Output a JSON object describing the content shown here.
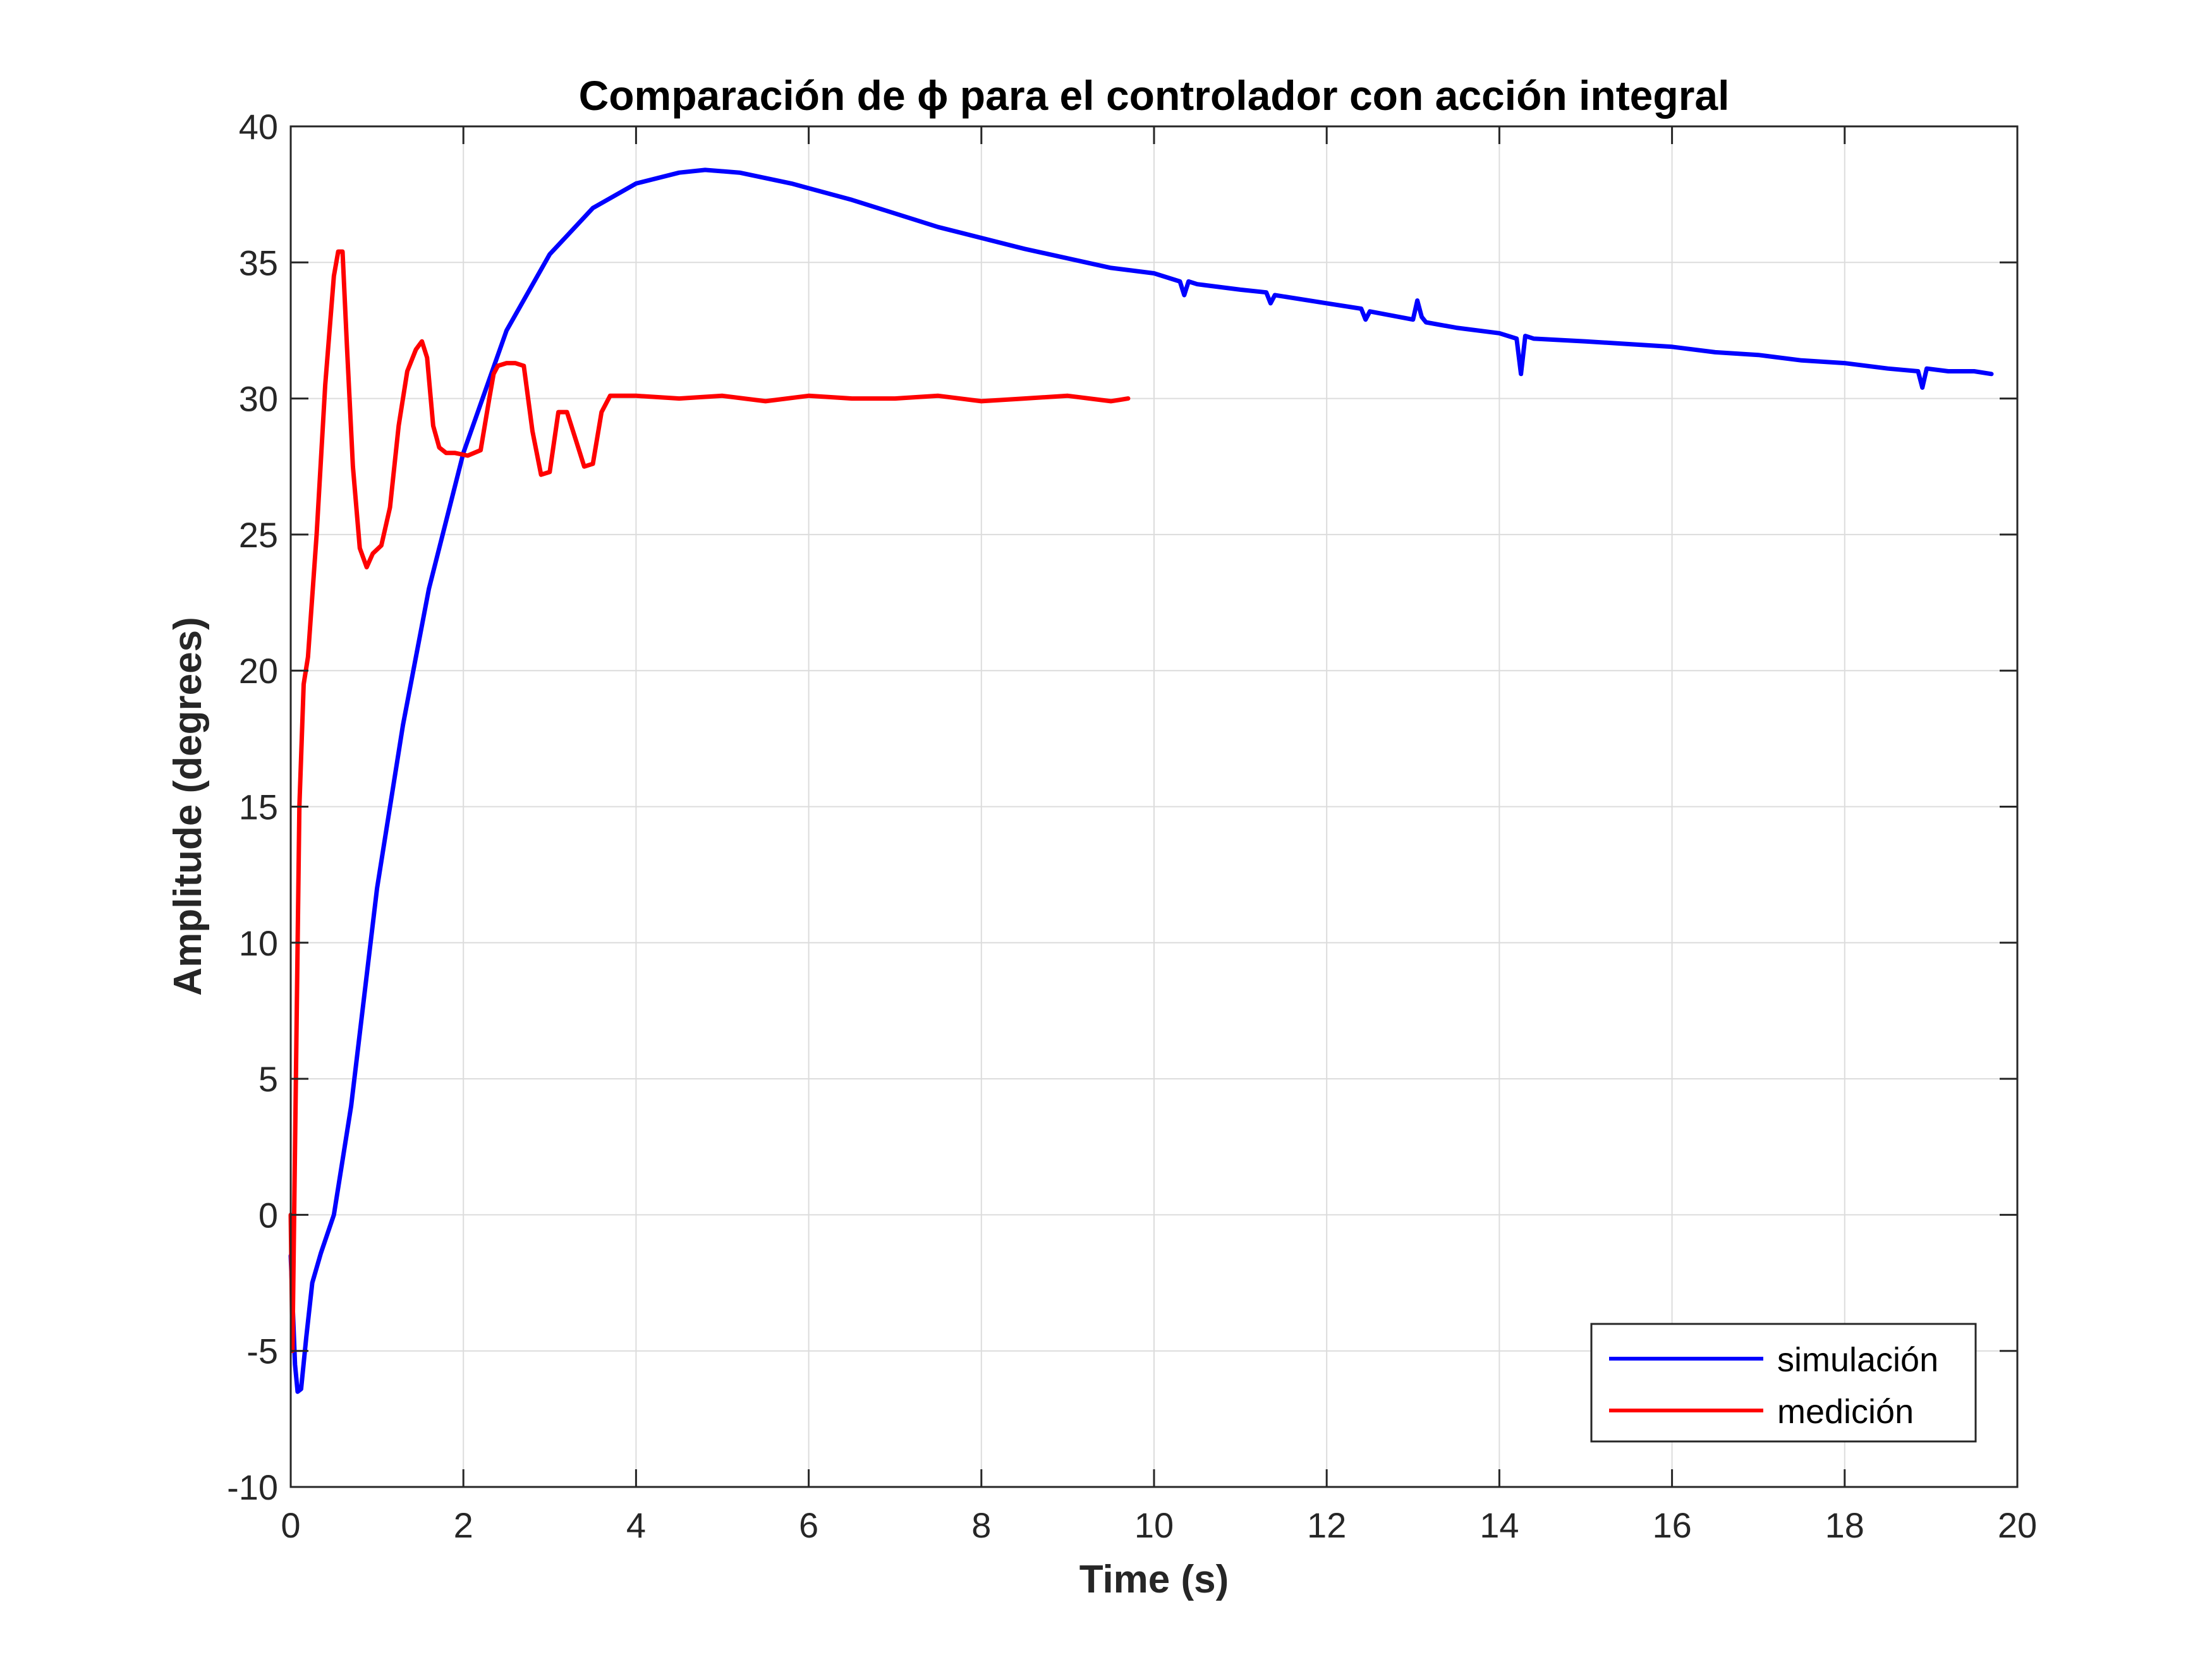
{
  "chart_data": {
    "type": "line",
    "title": "Comparación de ϕ para el controlador con acción integral",
    "xlabel": "Time (s)",
    "ylabel": "Amplitude (degrees)",
    "xlim": [
      0,
      20
    ],
    "ylim": [
      -10,
      40
    ],
    "xticks": [
      "0",
      "2",
      "4",
      "6",
      "8",
      "10",
      "12",
      "14",
      "16",
      "18",
      "20"
    ],
    "yticks": [
      "40",
      "35",
      "30",
      "25",
      "20",
      "15",
      "10",
      "5",
      "0",
      "-5",
      "-10"
    ],
    "grid": true,
    "legend_position": "bottom-right",
    "series": [
      {
        "name": "simulación",
        "color": "#0000ff",
        "x": [
          0,
          0.05,
          0.08,
          0.12,
          0.18,
          0.25,
          0.35,
          0.5,
          0.7,
          1.0,
          1.3,
          1.6,
          2.0,
          2.5,
          3.0,
          3.5,
          4.0,
          4.5,
          4.8,
          5.2,
          5.8,
          6.5,
          7.5,
          8.5,
          9.5,
          10.0,
          10.3,
          10.35,
          10.4,
          10.5,
          11.0,
          11.3,
          11.35,
          11.4,
          12.0,
          12.4,
          12.45,
          12.5,
          13.0,
          13.05,
          13.1,
          13.15,
          13.5,
          14.0,
          14.2,
          14.25,
          14.3,
          14.4,
          15.0,
          15.5,
          16.0,
          16.5,
          17.0,
          17.5,
          18.0,
          18.5,
          18.85,
          18.9,
          18.95,
          19.2,
          19.5,
          19.7
        ],
        "values": [
          -1.5,
          -5.5,
          -6.5,
          -6.4,
          -4.5,
          -2.5,
          -1.4,
          0,
          4,
          12,
          18,
          23,
          28,
          32.5,
          35.3,
          37,
          37.9,
          38.3,
          38.4,
          38.3,
          37.9,
          37.3,
          36.3,
          35.5,
          34.8,
          34.6,
          34.3,
          33.8,
          34.3,
          34.2,
          34,
          33.9,
          33.5,
          33.8,
          33.5,
          33.3,
          32.9,
          33.2,
          32.9,
          33.6,
          33,
          32.8,
          32.6,
          32.4,
          32.2,
          30.9,
          32.3,
          32.2,
          32.1,
          32,
          31.9,
          31.7,
          31.6,
          31.4,
          31.3,
          31.1,
          31,
          30.4,
          31.1,
          31,
          31,
          30.9
        ]
      },
      {
        "name": "medición",
        "color": "#ff0000",
        "x": [
          0,
          0.02,
          0.06,
          0.1,
          0.15,
          0.2,
          0.3,
          0.4,
          0.5,
          0.55,
          0.6,
          0.65,
          0.72,
          0.8,
          0.88,
          0.95,
          1.05,
          1.15,
          1.25,
          1.35,
          1.45,
          1.52,
          1.58,
          1.65,
          1.72,
          1.8,
          1.9,
          2.05,
          2.2,
          2.3,
          2.35,
          2.4,
          2.5,
          2.6,
          2.7,
          2.8,
          2.9,
          3.0,
          3.1,
          3.2,
          3.3,
          3.4,
          3.5,
          3.6,
          3.7,
          4.0,
          4.5,
          5.0,
          5.5,
          6.0,
          6.5,
          7.0,
          7.5,
          8.0,
          8.5,
          9.0,
          9.5,
          9.7
        ],
        "values": [
          0,
          -5,
          5,
          15,
          19.5,
          20.5,
          25,
          30.5,
          34.5,
          35.4,
          35.4,
          32,
          27.5,
          24.5,
          23.8,
          24.3,
          24.6,
          26,
          29,
          31,
          31.8,
          32.1,
          31.5,
          29,
          28.2,
          28,
          28,
          27.9,
          28.1,
          30,
          30.9,
          31.2,
          31.3,
          31.3,
          31.2,
          28.8,
          27.2,
          27.3,
          29.5,
          29.5,
          28.5,
          27.5,
          27.6,
          29.5,
          30.1,
          30.1,
          30,
          30.1,
          29.9,
          30.1,
          30,
          30,
          30.1,
          29.9,
          30,
          30.1,
          29.9,
          30
        ]
      }
    ]
  }
}
